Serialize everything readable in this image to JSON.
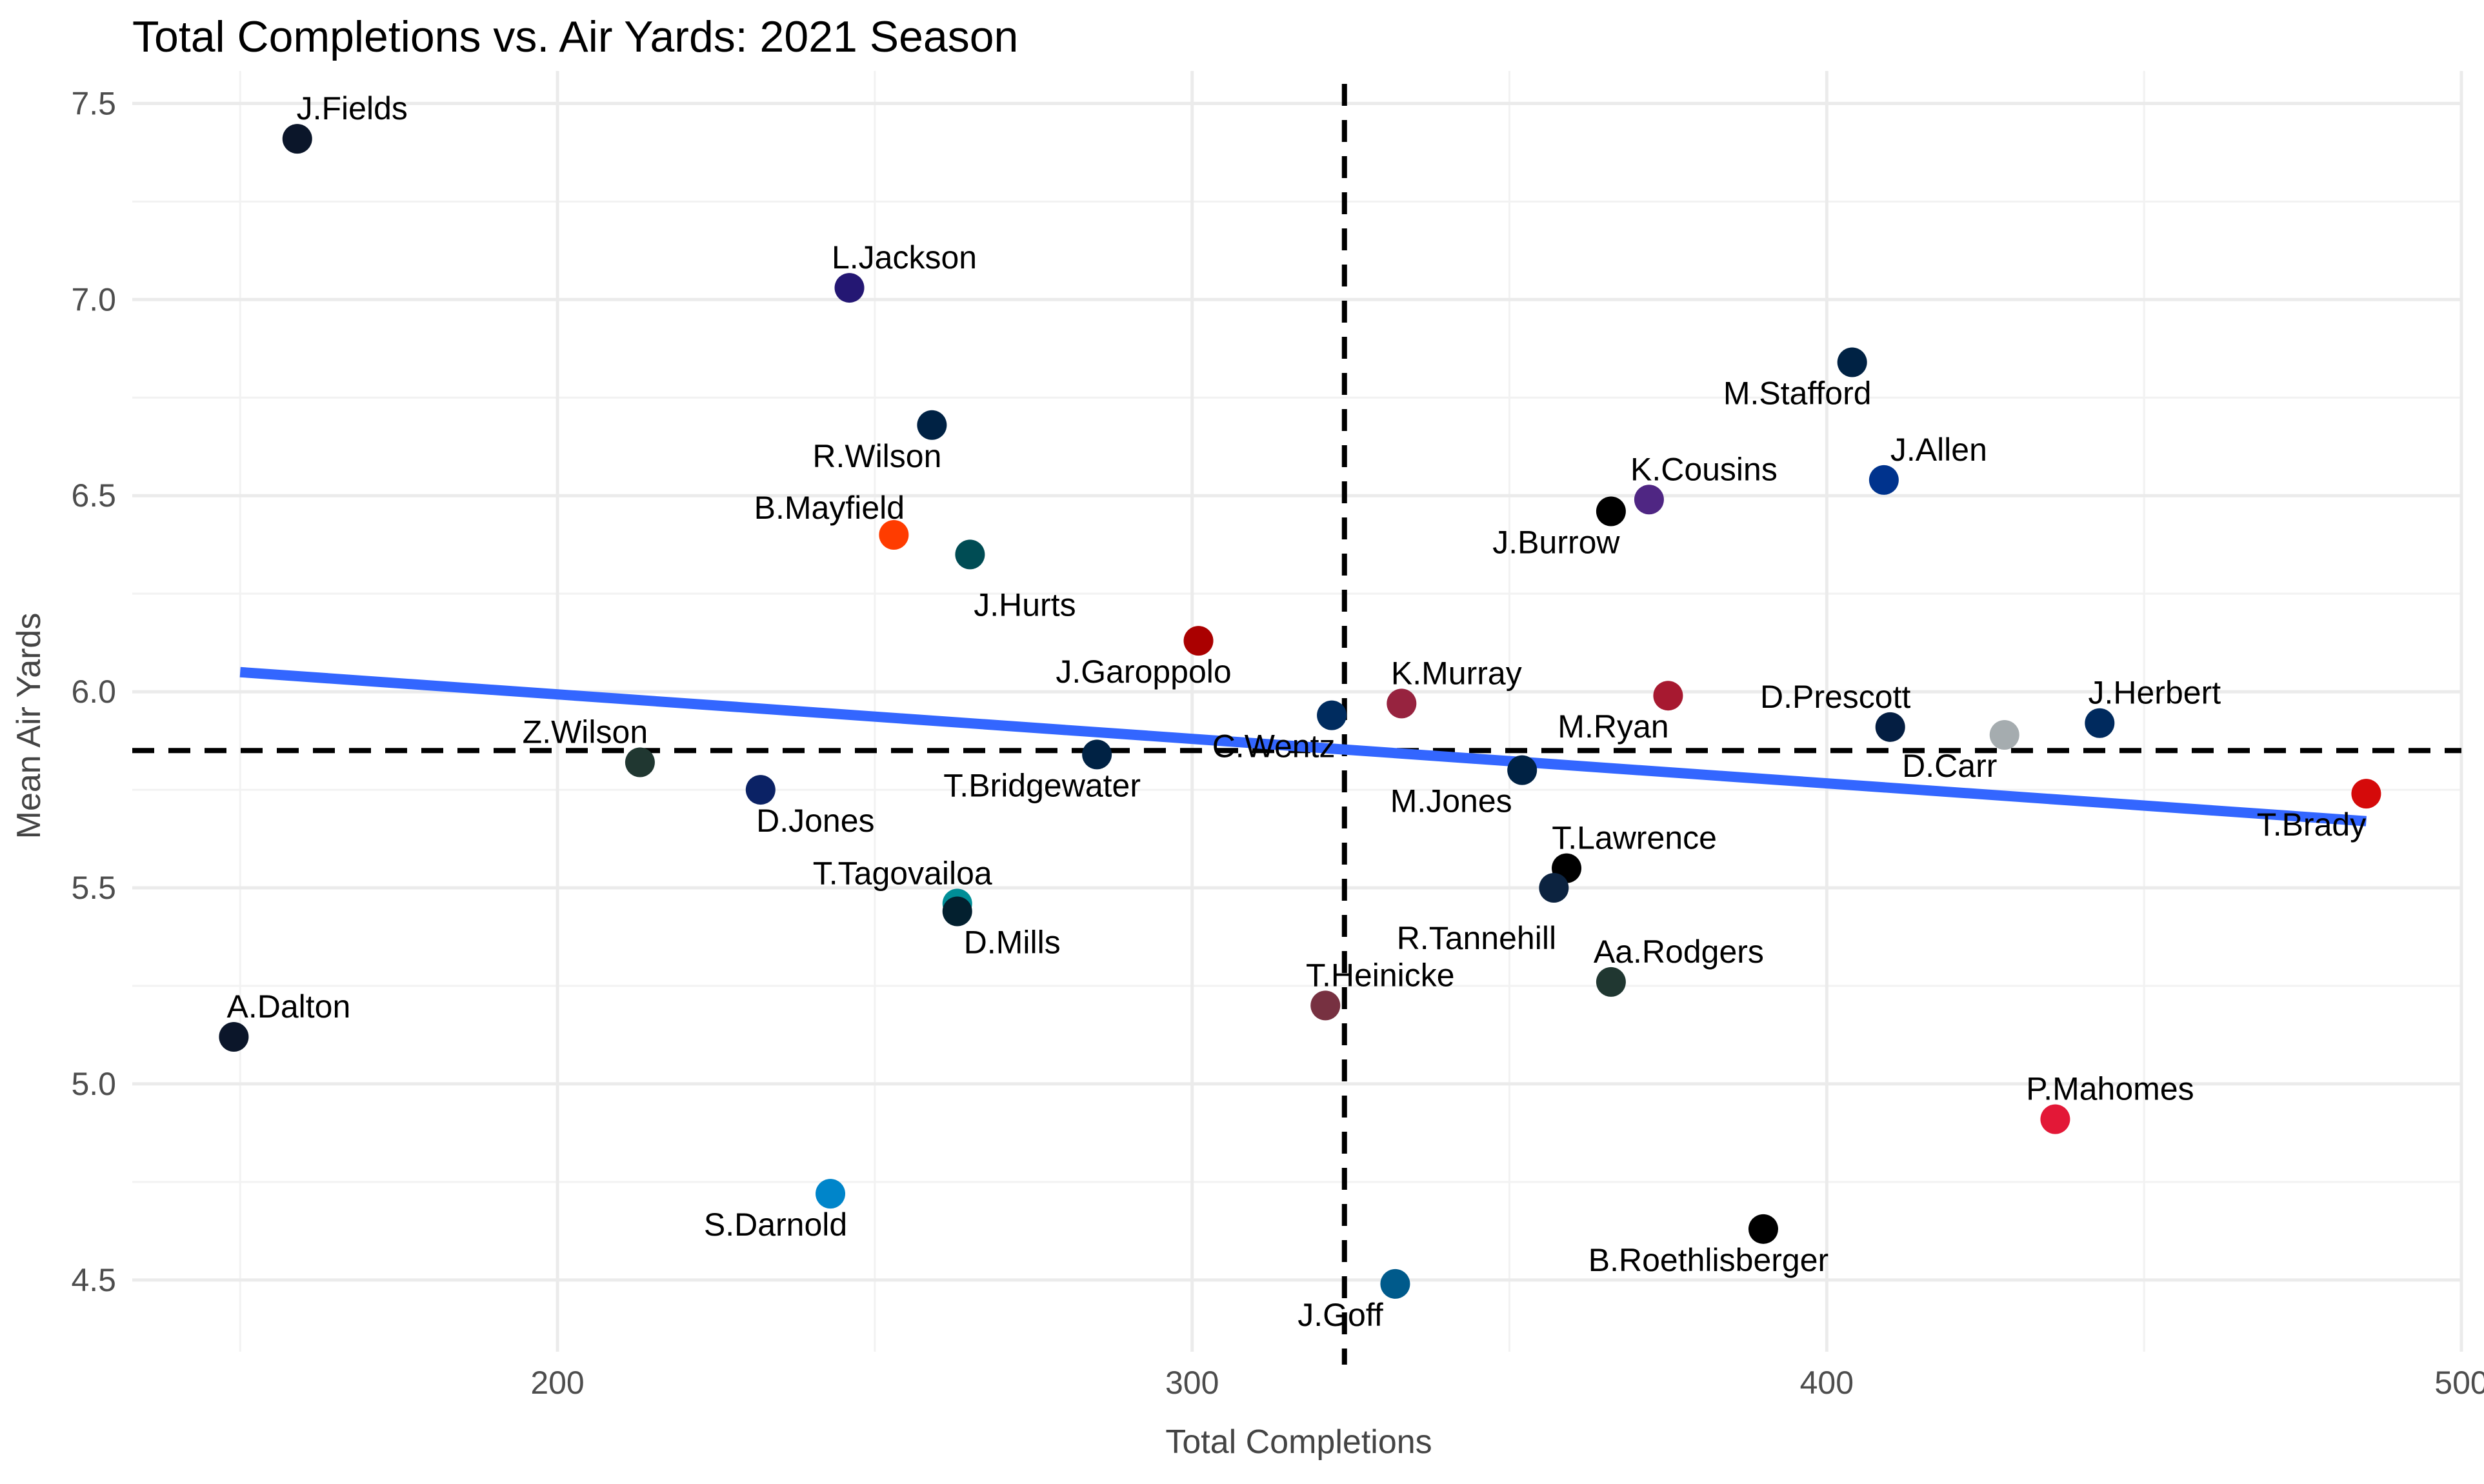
{
  "chart_data": {
    "type": "scatter",
    "title": "Total Completions vs. Air Yards: 2021 Season",
    "xlabel": "Total Completions",
    "ylabel": "Mean Air Yards",
    "xlim": [
      133,
      500
    ],
    "ylim": [
      4.35,
      7.55
    ],
    "xticks": [
      200,
      300,
      400,
      500
    ],
    "yticks": [
      4.5,
      5.0,
      5.5,
      6.0,
      6.5,
      7.0,
      7.5
    ],
    "grid": true,
    "reference_lines": {
      "vertical_x": 324,
      "horizontal_y": 5.85,
      "style": "dashed",
      "color": "#000000"
    },
    "trend_line": {
      "color": "#3366ff",
      "x": [
        150,
        485
      ],
      "y": [
        6.05,
        5.67
      ]
    },
    "points": [
      {
        "label": "J.Fields",
        "x": 159,
        "y": 7.41,
        "color": "#0b162a"
      },
      {
        "label": "L.Jackson",
        "x": 246,
        "y": 7.03,
        "color": "#241773"
      },
      {
        "label": "R.Wilson",
        "x": 259,
        "y": 6.68,
        "color": "#002244"
      },
      {
        "label": "B.Mayfield",
        "x": 253,
        "y": 6.4,
        "color": "#ff3c00"
      },
      {
        "label": "J.Hurts",
        "x": 265,
        "y": 6.35,
        "color": "#004c54"
      },
      {
        "label": "J.Garoppolo",
        "x": 301,
        "y": 6.13,
        "color": "#aa0000"
      },
      {
        "label": "C.Wentz",
        "x": 322,
        "y": 5.94,
        "color": "#002c5f"
      },
      {
        "label": "K.Murray",
        "x": 333,
        "y": 5.97,
        "color": "#97233f"
      },
      {
        "label": "M.Ryan",
        "x": 375,
        "y": 5.99,
        "color": "#a71930"
      },
      {
        "label": "M.Stafford",
        "x": 404,
        "y": 6.84,
        "color": "#002244"
      },
      {
        "label": "K.Cousins",
        "x": 372,
        "y": 6.49,
        "color": "#4f2683"
      },
      {
        "label": "J.Allen",
        "x": 409,
        "y": 6.54,
        "color": "#00338d"
      },
      {
        "label": "J.Burrow",
        "x": 366,
        "y": 6.46,
        "color": "#000000"
      },
      {
        "label": "D.Prescott",
        "x": 410,
        "y": 5.91,
        "color": "#041e42"
      },
      {
        "label": "D.Carr",
        "x": 428,
        "y": 5.89,
        "color": "#a5acaf"
      },
      {
        "label": "J.Herbert",
        "x": 443,
        "y": 5.92,
        "color": "#002a5e"
      },
      {
        "label": "T.Brady",
        "x": 485,
        "y": 5.74,
        "color": "#d50a0a"
      },
      {
        "label": "Z.Wilson",
        "x": 213,
        "y": 5.82,
        "color": "#203731"
      },
      {
        "label": "D.Jones",
        "x": 232,
        "y": 5.75,
        "color": "#0b2265"
      },
      {
        "label": "T.Bridgewater",
        "x": 285,
        "y": 5.84,
        "color": "#002244"
      },
      {
        "label": "M.Jones",
        "x": 352,
        "y": 5.8,
        "color": "#002244"
      },
      {
        "label": "T.Lawrence",
        "x": 359,
        "y": 5.55,
        "color": "#000000"
      },
      {
        "label": "R.Tannehill",
        "x": 357,
        "y": 5.5,
        "color": "#0c2340"
      },
      {
        "label": "T.Tagovailoa",
        "x": 263,
        "y": 5.46,
        "color": "#008e97"
      },
      {
        "label": "D.Mills",
        "x": 263,
        "y": 5.44,
        "color": "#03202f"
      },
      {
        "label": "T.Heinicke",
        "x": 321,
        "y": 5.2,
        "color": "#773141"
      },
      {
        "label": "Aa.Rodgers",
        "x": 366,
        "y": 5.26,
        "color": "#203731"
      },
      {
        "label": "A.Dalton",
        "x": 149,
        "y": 5.12,
        "color": "#0b162a"
      },
      {
        "label": "P.Mahomes",
        "x": 436,
        "y": 4.91,
        "color": "#e31837"
      },
      {
        "label": "S.Darnold",
        "x": 243,
        "y": 4.72,
        "color": "#0085ca"
      },
      {
        "label": "B.Roethlisberger",
        "x": 390,
        "y": 4.63,
        "color": "#000000"
      },
      {
        "label": "J.Goff",
        "x": 332,
        "y": 4.49,
        "color": "#005a8b"
      }
    ]
  }
}
